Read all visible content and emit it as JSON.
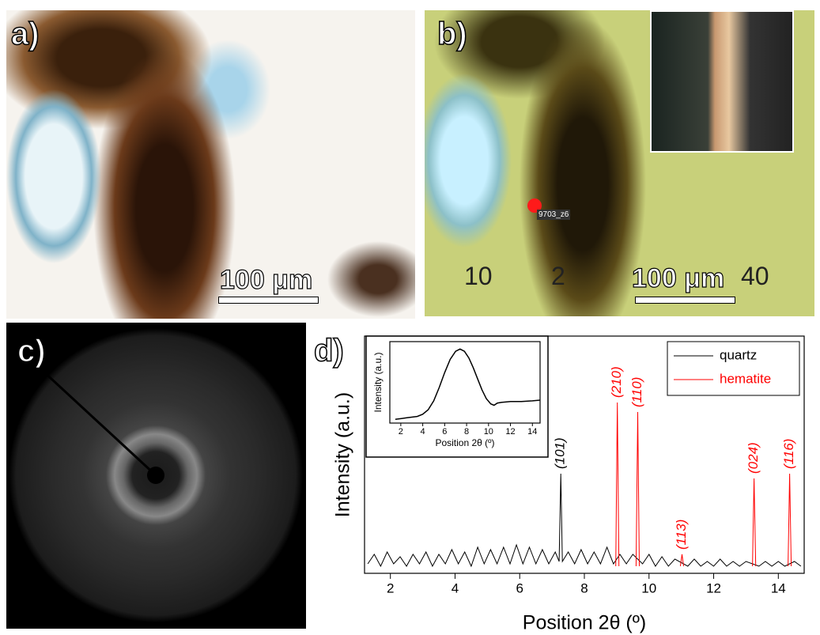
{
  "panels": {
    "a": {
      "label": "a)",
      "scale": "100 μm"
    },
    "b": {
      "label": "b)",
      "scale": "100 μm",
      "marker": "9703_z6",
      "ruler": [
        "10",
        "2",
        "40"
      ]
    },
    "c": {
      "label": "c)"
    }
  },
  "chart_data": [
    {
      "type": "line",
      "panel_label": "d)",
      "x_label": "Position 2θ (º)",
      "y_label": "Intensity (a.u.)",
      "xlim": [
        1.2,
        14.8
      ],
      "xticks": [
        2,
        4,
        6,
        8,
        10,
        12,
        14
      ],
      "ylim": [
        0,
        100
      ],
      "legend": "upper right",
      "series": [
        {
          "name": "quartz",
          "color": "#000000",
          "x": [
            1.3,
            1.5,
            1.7,
            1.9,
            2.1,
            2.3,
            2.5,
            2.7,
            2.9,
            3.1,
            3.3,
            3.5,
            3.7,
            3.9,
            4.1,
            4.3,
            4.5,
            4.7,
            4.9,
            5.1,
            5.3,
            5.5,
            5.7,
            5.9,
            6.1,
            6.3,
            6.5,
            6.7,
            6.9,
            7.1,
            7.22,
            7.27,
            7.32,
            7.5,
            7.7,
            7.9,
            8.1,
            8.3,
            8.5,
            8.7,
            8.9,
            9.1,
            9.3,
            9.5,
            9.8,
            10.0,
            10.2,
            10.4,
            10.6,
            10.8,
            11.2,
            11.4,
            11.6,
            11.8,
            12.0,
            12.2,
            12.4,
            12.6,
            12.8,
            13.0,
            13.4,
            13.6,
            13.8,
            14.0,
            14.2,
            14.5,
            14.7
          ],
          "values": [
            4,
            8,
            3,
            9,
            4,
            7,
            3,
            8,
            4,
            9,
            3,
            8,
            4,
            10,
            4,
            9,
            3,
            11,
            4,
            10,
            4,
            11,
            4,
            12,
            4,
            11,
            4,
            10,
            4,
            9,
            5,
            42,
            5,
            9,
            4,
            10,
            4,
            9,
            4,
            11,
            4,
            8,
            4,
            8,
            4,
            8,
            3,
            7,
            3,
            6,
            3,
            6,
            3,
            5,
            3,
            6,
            3,
            5,
            3,
            5,
            3,
            5,
            3,
            5,
            3,
            5,
            3
          ]
        },
        {
          "name": "hematite",
          "color": "#ff0000",
          "x": [
            8.97,
            9.02,
            9.07,
            9.1,
            9.6,
            9.65,
            9.7,
            9.73,
            10.97,
            11.02,
            11.07,
            11.1,
            13.2,
            13.25,
            13.3,
            13.33,
            14.3,
            14.35,
            14.4
          ],
          "values": [
            3,
            72,
            3,
            null,
            3,
            68,
            3,
            null,
            3,
            8,
            3,
            null,
            3,
            40,
            3,
            null,
            3,
            42,
            3
          ]
        }
      ],
      "peak_labels": [
        {
          "text": "(101)",
          "x": 7.27,
          "color": "#000000"
        },
        {
          "text": "(210)",
          "x": 9.02,
          "color": "#ff0000"
        },
        {
          "text": "(110)",
          "x": 9.65,
          "color": "#ff0000"
        },
        {
          "text": "(113)",
          "x": 11.02,
          "color": "#ff0000"
        },
        {
          "text": "(024)",
          "x": 13.25,
          "color": "#ff0000"
        },
        {
          "text": "(116)",
          "x": 14.35,
          "color": "#ff0000"
        }
      ]
    },
    {
      "type": "line",
      "x_label": "Position 2θ (º)",
      "y_label": "Intensity (a.u.)",
      "xlim": [
        1.0,
        14.7
      ],
      "xticks": [
        2,
        4,
        6,
        8,
        10,
        12,
        14
      ],
      "ylim": [
        0,
        110
      ],
      "series": [
        {
          "color": "#000000",
          "x": [
            1.5,
            2,
            2.5,
            3,
            3.5,
            4,
            4.5,
            5,
            5.5,
            6,
            6.5,
            7,
            7.4,
            7.8,
            8.2,
            8.6,
            9,
            9.4,
            9.8,
            10.2,
            10.5,
            10.8,
            11.2,
            12,
            13,
            14,
            14.7
          ],
          "values": [
            5,
            6,
            7,
            8,
            9,
            12,
            18,
            30,
            48,
            68,
            86,
            97,
            100,
            97,
            88,
            75,
            60,
            45,
            33,
            26,
            24,
            27,
            28,
            29,
            29,
            30,
            31
          ]
        }
      ]
    }
  ]
}
